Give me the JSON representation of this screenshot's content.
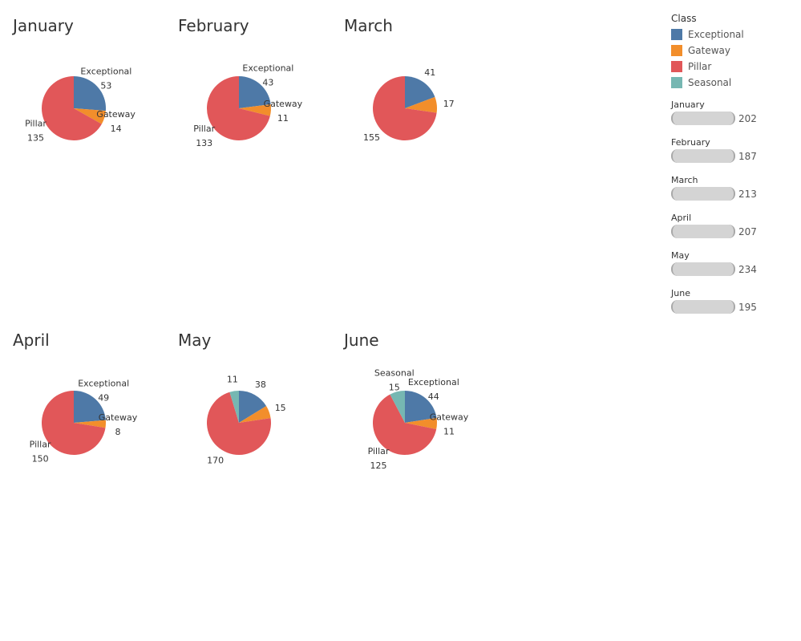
{
  "legend": {
    "title": "Class",
    "items": [
      {
        "label": "Exceptional",
        "color": "#4e79a7"
      },
      {
        "label": "Gateway",
        "color": "#f28e2b"
      },
      {
        "label": "Pillar",
        "color": "#e15759"
      },
      {
        "label": "Seasonal",
        "color": "#76b7b2"
      }
    ]
  },
  "filters": [
    {
      "label": "January",
      "value": "202"
    },
    {
      "label": "February",
      "value": "187"
    },
    {
      "label": "March",
      "value": "213"
    },
    {
      "label": "April",
      "value": "207"
    },
    {
      "label": "May",
      "value": "234"
    },
    {
      "label": "June",
      "value": "195"
    }
  ],
  "chart_data": [
    {
      "type": "pie",
      "title": "January",
      "slices": [
        {
          "class": "Exceptional",
          "value": 53,
          "label": "Exceptional"
        },
        {
          "class": "Gateway",
          "value": 14,
          "label": "Gateway"
        },
        {
          "class": "Pillar",
          "value": 135,
          "label": "Pillar"
        }
      ]
    },
    {
      "type": "pie",
      "title": "February",
      "slices": [
        {
          "class": "Exceptional",
          "value": 43,
          "label": "Exceptional"
        },
        {
          "class": "Gateway",
          "value": 11,
          "label": "Gateway"
        },
        {
          "class": "Pillar",
          "value": 133,
          "label": "Pillar"
        }
      ]
    },
    {
      "type": "pie",
      "title": "March",
      "slices": [
        {
          "class": "Exceptional",
          "value": 41,
          "label": ""
        },
        {
          "class": "Gateway",
          "value": 17,
          "label": ""
        },
        {
          "class": "Pillar",
          "value": 155,
          "label": ""
        }
      ]
    },
    {
      "type": "pie",
      "title": "April",
      "slices": [
        {
          "class": "Exceptional",
          "value": 49,
          "label": "Exceptional"
        },
        {
          "class": "Gateway",
          "value": 8,
          "label": "Gateway"
        },
        {
          "class": "Pillar",
          "value": 150,
          "label": "Pillar"
        }
      ]
    },
    {
      "type": "pie",
      "title": "May",
      "slices": [
        {
          "class": "Exceptional",
          "value": 38,
          "label": ""
        },
        {
          "class": "Gateway",
          "value": 15,
          "label": ""
        },
        {
          "class": "Pillar",
          "value": 170,
          "label": ""
        },
        {
          "class": "Seasonal",
          "value": 11,
          "label": ""
        }
      ]
    },
    {
      "type": "pie",
      "title": "June",
      "slices": [
        {
          "class": "Exceptional",
          "value": 44,
          "label": "Exceptional"
        },
        {
          "class": "Gateway",
          "value": 11,
          "label": "Gateway"
        },
        {
          "class": "Pillar",
          "value": 125,
          "label": "Pillar"
        },
        {
          "class": "Seasonal",
          "value": 15,
          "label": "Seasonal"
        }
      ]
    }
  ]
}
